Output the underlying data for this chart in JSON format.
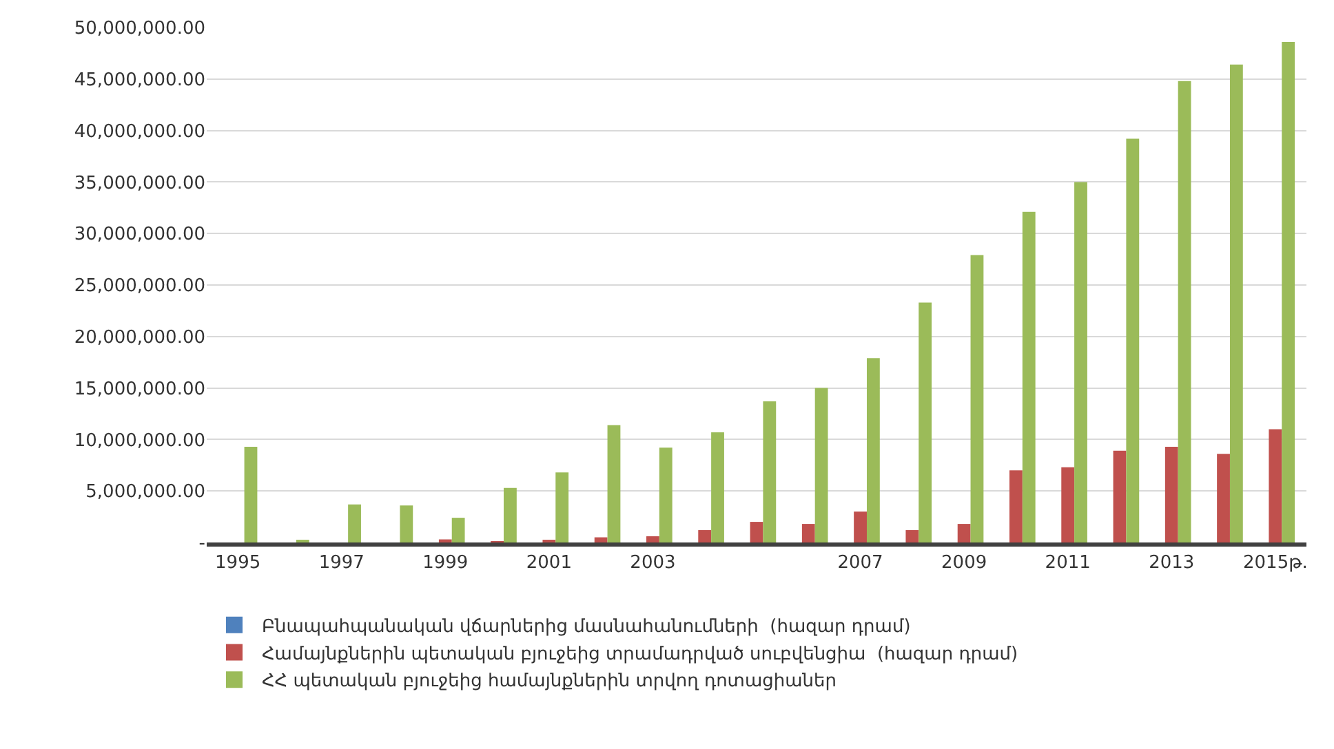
{
  "chart_data": {
    "type": "bar",
    "categories": [
      "1995",
      null,
      "1997",
      null,
      "1999",
      null,
      "2001",
      null,
      "2003",
      null,
      null,
      null,
      "2007",
      null,
      "2009",
      null,
      "2011",
      null,
      "2013",
      null,
      "2015թ."
    ],
    "series": [
      {
        "name": "Բնապահպանական վճարներից մասնահանումների  (հազար դրամ)",
        "color": "#4f81bd",
        "values": [
          0,
          0,
          0,
          0,
          0,
          0,
          0,
          0,
          0,
          0,
          0,
          0,
          0,
          0,
          0,
          0,
          0,
          0,
          0,
          0,
          0
        ]
      },
      {
        "name": "Համայնքներին պետական բյուջեից տրամադրված սուբվենցիա  (հազար դրամ)",
        "color": "#c0504d",
        "values": [
          0,
          0,
          0,
          0,
          300000,
          100000,
          200000,
          500000,
          600000,
          1200000,
          2000000,
          1800000,
          3000000,
          1200000,
          1800000,
          7000000,
          7300000,
          8900000,
          9300000,
          8600000,
          11000000
        ]
      },
      {
        "name": "ՀՀ պետական բյուջեից համայնքներին տրվող դոտացիաներ",
        "color": "#9bbb59",
        "values": [
          9300000,
          200000,
          3700000,
          3600000,
          2400000,
          5300000,
          6800000,
          11400000,
          9200000,
          10700000,
          13700000,
          15000000,
          17900000,
          23300000,
          27900000,
          32100000,
          35000000,
          39200000,
          44800000,
          46400000,
          48600000
        ]
      }
    ],
    "ylim": [
      0,
      50000000
    ],
    "yticks": [
      {
        "value": 0,
        "label": "-"
      },
      {
        "value": 5000000,
        "label": "5,000,000.00"
      },
      {
        "value": 10000000,
        "label": "10,000,000.00"
      },
      {
        "value": 15000000,
        "label": "15,000,000.00"
      },
      {
        "value": 20000000,
        "label": "20,000,000.00"
      },
      {
        "value": 25000000,
        "label": "25,000,000.00"
      },
      {
        "value": 30000000,
        "label": "30,000,000.00"
      },
      {
        "value": 35000000,
        "label": "35,000,000.00"
      },
      {
        "value": 40000000,
        "label": "40,000,000.00"
      },
      {
        "value": 45000000,
        "label": "45,000,000.00"
      },
      {
        "value": 50000000,
        "label": "50,000,000.00"
      }
    ],
    "grid": "y",
    "legend": "bottom"
  }
}
